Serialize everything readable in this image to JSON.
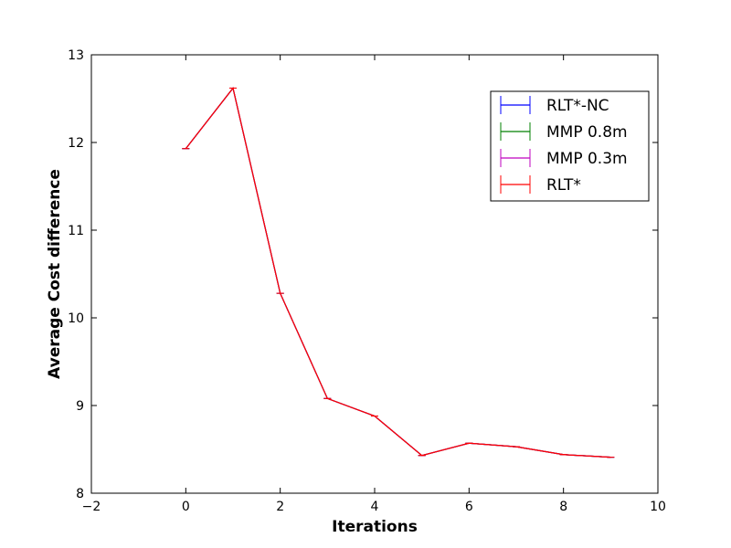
{
  "chart_data": {
    "type": "line",
    "title": "",
    "xlabel": "Iterations",
    "ylabel": "Average Cost difference",
    "xlim": [
      -2,
      10
    ],
    "ylim": [
      8,
      13
    ],
    "xticks": [
      -2,
      0,
      2,
      4,
      6,
      8,
      10
    ],
    "xtick_labels": [
      "−2",
      "0",
      "2",
      "4",
      "6",
      "8",
      "10"
    ],
    "yticks": [
      8,
      9,
      10,
      11,
      12,
      13
    ],
    "ytick_labels": [
      "8",
      "9",
      "10",
      "11",
      "12",
      "13"
    ],
    "grid": false,
    "legend_position": "top-right",
    "error_bars": true,
    "x": [
      0,
      1,
      2,
      3,
      4,
      5,
      6,
      7,
      8,
      9
    ],
    "series": [
      {
        "name": "RLT*-NC",
        "color": "#0000ff",
        "values": [
          11.93,
          12.62,
          10.28,
          9.08,
          8.88,
          8.43,
          8.57,
          8.53,
          8.44,
          8.41
        ]
      },
      {
        "name": "MMP 0.8m",
        "color": "#008000",
        "values": [
          11.93,
          12.62,
          10.28,
          9.08,
          8.88,
          8.43,
          8.57,
          8.53,
          8.44,
          8.41
        ]
      },
      {
        "name": "MMP 0.3m",
        "color": "#bf00bf",
        "values": [
          11.93,
          12.62,
          10.28,
          9.08,
          8.88,
          8.43,
          8.57,
          8.53,
          8.44,
          8.41
        ]
      },
      {
        "name": "RLT*",
        "color": "#ff0000",
        "values": [
          11.93,
          12.62,
          10.28,
          9.08,
          8.88,
          8.43,
          8.57,
          8.53,
          8.44,
          8.41
        ]
      }
    ]
  }
}
